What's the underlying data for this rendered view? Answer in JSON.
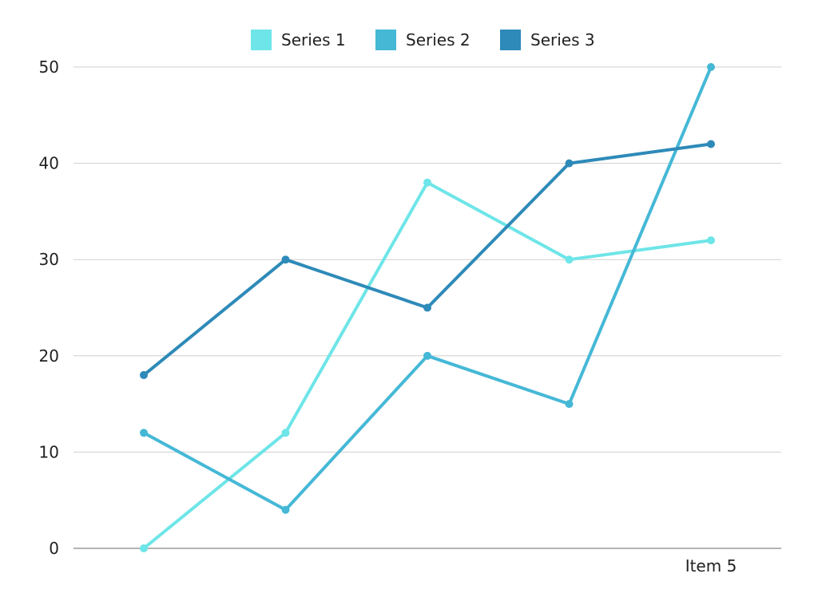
{
  "chart_data": {
    "type": "line",
    "categories": [
      "",
      "",
      "",
      "",
      "Item 5"
    ],
    "series": [
      {
        "name": "Series 1",
        "color": "#6ee5e8",
        "values": [
          0,
          12,
          38,
          30,
          32
        ]
      },
      {
        "name": "Series 2",
        "color": "#45b8d6",
        "values": [
          12,
          4,
          20,
          15,
          50
        ]
      },
      {
        "name": "Series 3",
        "color": "#2e8ab8",
        "values": [
          18,
          30,
          25,
          40,
          42
        ]
      }
    ],
    "yticks": [
      "0",
      "10",
      "20",
      "30",
      "40",
      "50"
    ],
    "ylim": [
      0,
      50
    ],
    "grid": true,
    "legend": "top-center",
    "title": "",
    "xlabel": "",
    "ylabel": ""
  }
}
